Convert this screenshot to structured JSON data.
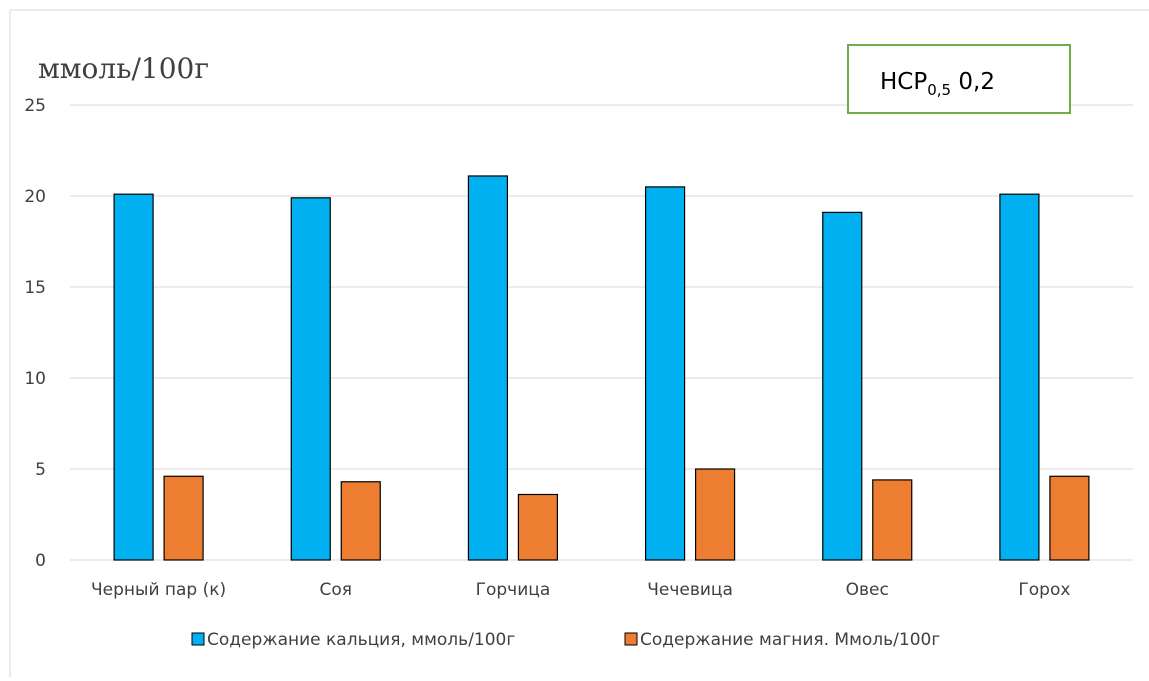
{
  "chart_data": {
    "type": "bar",
    "title": "",
    "y_unit_label": "ммоль/100г",
    "annotation": {
      "prefix": "НСР",
      "subscript": "0,5",
      "value": "0,2"
    },
    "categories": [
      "Черный пар (к)",
      "Соя",
      "Горчица",
      "Чечевица",
      "Овес",
      "Горох"
    ],
    "series": [
      {
        "name": "Содержание кальция, ммоль/100г",
        "color": "#00B0F0",
        "values": [
          20.1,
          19.9,
          21.1,
          20.5,
          19.1,
          20.1
        ]
      },
      {
        "name": "Содержание магния. Ммоль/100г",
        "color": "#ED7D31",
        "values": [
          4.6,
          4.3,
          3.6,
          5.0,
          4.4,
          4.6
        ]
      }
    ],
    "ylim": [
      0,
      25
    ],
    "yticks": [
      "0",
      "5",
      "10",
      "15",
      "20",
      "25"
    ],
    "grid": true,
    "legend_position": "bottom"
  }
}
